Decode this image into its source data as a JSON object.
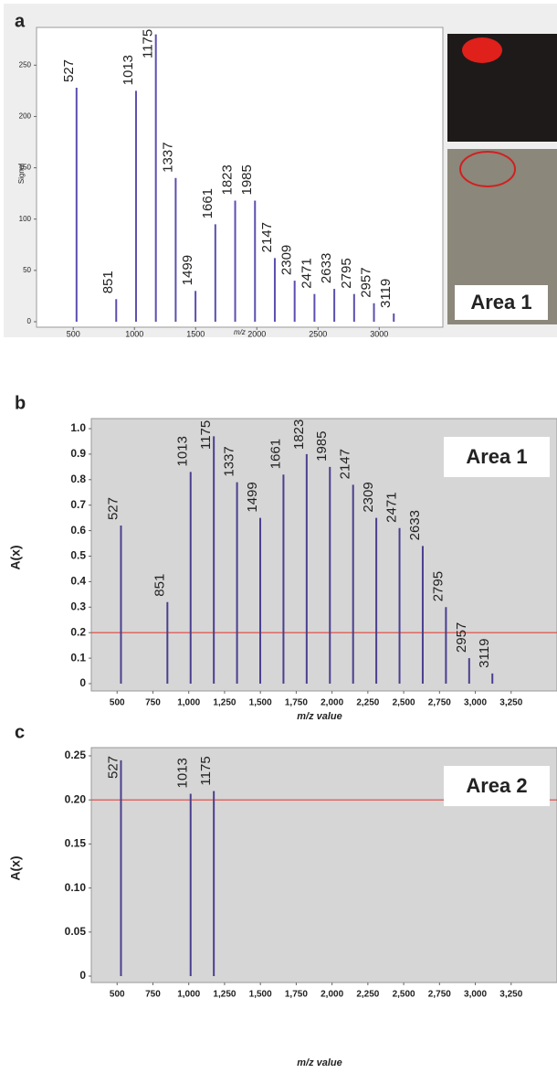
{
  "chart_data": [
    {
      "type": "bar",
      "panel": "a",
      "ylabel": "Signal",
      "xlabel": "m/z",
      "annotation": "Area 1",
      "color": "#5a4fb0",
      "x": [
        527,
        851,
        1013,
        1175,
        1337,
        1499,
        1661,
        1823,
        1985,
        2147,
        2309,
        2471,
        2633,
        2795,
        2957,
        3119
      ],
      "values": [
        228,
        22,
        225,
        280,
        140,
        30,
        95,
        118,
        118,
        62,
        40,
        27,
        32,
        27,
        18,
        8
      ],
      "xlim": [
        200,
        3520
      ],
      "ylim": [
        0,
        285
      ],
      "xticks": [
        500,
        1000,
        1500,
        2000,
        2500,
        3000
      ],
      "yticks": [
        0,
        50,
        100,
        150,
        200,
        250
      ],
      "grid": false
    },
    {
      "type": "bar",
      "panel": "b",
      "ylabel": "A(x)",
      "xlabel": "m/z value",
      "annotation": "Area 1",
      "color": "#4a3f8f",
      "threshold": 0.2,
      "threshold_color": "#e0453a",
      "x": [
        527,
        851,
        1013,
        1175,
        1337,
        1499,
        1661,
        1823,
        1985,
        2147,
        2309,
        2471,
        2633,
        2795,
        2957,
        3119
      ],
      "values": [
        0.62,
        0.32,
        0.83,
        0.97,
        0.79,
        0.65,
        0.82,
        0.9,
        0.85,
        0.78,
        0.65,
        0.61,
        0.54,
        0.3,
        0.1,
        0.04
      ],
      "xlim": [
        320,
        3570
      ],
      "ylim": [
        0,
        1
      ],
      "xticks": [
        500,
        750,
        {
          "value": 1000,
          "label": "1,000"
        },
        {
          "value": 1250,
          "label": "1,250"
        },
        {
          "value": 1500,
          "label": "1,500"
        },
        {
          "value": 1750,
          "label": "1,750"
        },
        {
          "value": 2000,
          "label": "2,000"
        },
        {
          "value": 2250,
          "label": "2,250"
        },
        {
          "value": 2500,
          "label": "2,500"
        },
        {
          "value": 2750,
          "label": "2,750"
        },
        {
          "value": 3000,
          "label": "3,000"
        },
        {
          "value": 3250,
          "label": "3,250"
        }
      ],
      "yticks": [
        0,
        0.1,
        0.2,
        0.3,
        0.4,
        0.5,
        0.6,
        0.7,
        0.8,
        0.9,
        {
          "value": 1,
          "label": "1.0"
        }
      ],
      "grid": false
    },
    {
      "type": "bar",
      "panel": "c",
      "ylabel": "A(x)",
      "xlabel": "m/z value",
      "annotation": "Area 2",
      "color": "#4a3f8f",
      "threshold": 0.2,
      "threshold_color": "#e0453a",
      "x": [
        527,
        1013,
        1175
      ],
      "values": [
        0.245,
        0.207,
        0.21
      ],
      "xlim": [
        320,
        3570
      ],
      "ylim": [
        0,
        0.25
      ],
      "xticks": [
        500,
        750,
        {
          "value": 1000,
          "label": "1,000"
        },
        {
          "value": 1250,
          "label": "1,250"
        },
        {
          "value": 1500,
          "label": "1,500"
        },
        {
          "value": 1750,
          "label": "1,750"
        },
        {
          "value": 2000,
          "label": "2,000"
        },
        {
          "value": 2250,
          "label": "2,250"
        },
        {
          "value": 2500,
          "label": "2,500"
        },
        {
          "value": 2750,
          "label": "2,750"
        },
        {
          "value": 3000,
          "label": "3,000"
        },
        {
          "value": 3250,
          "label": "3,250"
        }
      ],
      "yticks": [
        0,
        0.05,
        {
          "value": 0.1,
          "label": "0.10"
        },
        0.15,
        {
          "value": 0.2,
          "label": "0.20"
        },
        0.25
      ],
      "grid": false
    }
  ]
}
